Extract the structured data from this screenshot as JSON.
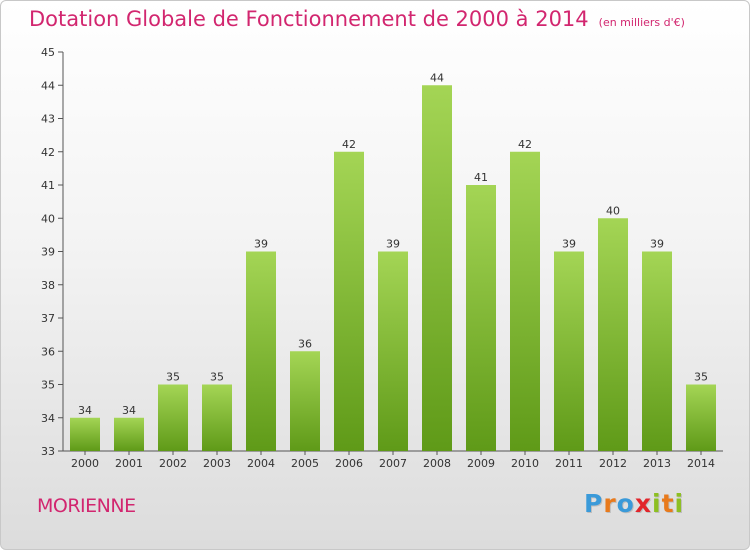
{
  "header": {
    "title": "Dotation Globale de Fonctionnement de 2000 à 2014",
    "unit": "(en milliers d'€)"
  },
  "footer": {
    "commune": "MORIENNE",
    "brand": "Proxiti"
  },
  "colors": {
    "title": "#d2266f",
    "bar_top": "#a4d555",
    "bar_bottom": "#5f9a18",
    "brand_letters": [
      "#3a9ad9",
      "#e87a1c",
      "#3a9ad9",
      "#e2252b",
      "#8dbf22",
      "#e87a1c",
      "#8dbf22"
    ]
  },
  "chart_data": {
    "type": "bar",
    "categories": [
      "2000",
      "2001",
      "2002",
      "2003",
      "2004",
      "2005",
      "2006",
      "2007",
      "2008",
      "2009",
      "2010",
      "2011",
      "2012",
      "2013",
      "2014"
    ],
    "values": [
      34,
      34,
      35,
      35,
      39,
      36,
      42,
      39,
      44,
      41,
      42,
      39,
      40,
      39,
      35
    ],
    "title": "Dotation Globale de Fonctionnement de 2000 à 2014",
    "xlabel": "",
    "ylabel": "",
    "ylim": [
      33,
      45
    ],
    "yticks": [
      33,
      34,
      35,
      36,
      37,
      38,
      39,
      40,
      41,
      42,
      43,
      44,
      45
    ],
    "grid": false,
    "data_labels": true
  }
}
